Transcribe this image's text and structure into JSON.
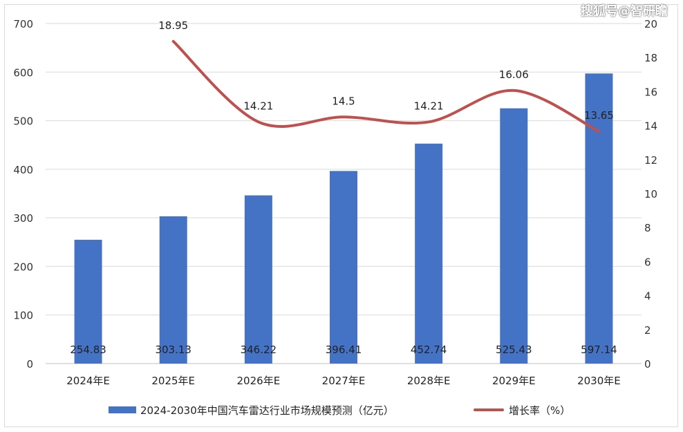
{
  "watermark": "搜狐号@智研瞻",
  "chart_data": {
    "type": "bar",
    "categories": [
      "2024年E",
      "2025年E",
      "2026年E",
      "2027年E",
      "2028年E",
      "2029年E",
      "2030年E"
    ],
    "series": [
      {
        "name": "2024-2030年中国汽车雷达行业市场规模预测（亿元）",
        "type": "bar",
        "axis": "left",
        "color": "#4472c4",
        "values": [
          254.83,
          303.13,
          346.22,
          396.41,
          452.74,
          525.43,
          597.14
        ],
        "labels": [
          "254.83",
          "303.13",
          "346.22",
          "396.41",
          "452.74",
          "525.43",
          "597.14"
        ]
      },
      {
        "name": "增长率（%）",
        "type": "line",
        "axis": "right",
        "color": "#c0504d",
        "smooth": true,
        "values": [
          null,
          18.95,
          14.21,
          14.5,
          14.21,
          16.06,
          13.65
        ],
        "labels": [
          "",
          "18.95",
          "14.21",
          "14.5",
          "14.21",
          "16.06",
          "13.65"
        ]
      }
    ],
    "y_left": {
      "min": 0,
      "max": 700,
      "ticks": [
        "0",
        "100",
        "200",
        "300",
        "400",
        "500",
        "600",
        "700"
      ]
    },
    "y_right": {
      "min": 0,
      "max": 20,
      "ticks": [
        "0",
        "2",
        "4",
        "6",
        "8",
        "10",
        "12",
        "14",
        "16",
        "18",
        "20"
      ]
    },
    "grid": true,
    "legend_position": "bottom",
    "title": "",
    "xlabel": "",
    "ylabel": ""
  }
}
